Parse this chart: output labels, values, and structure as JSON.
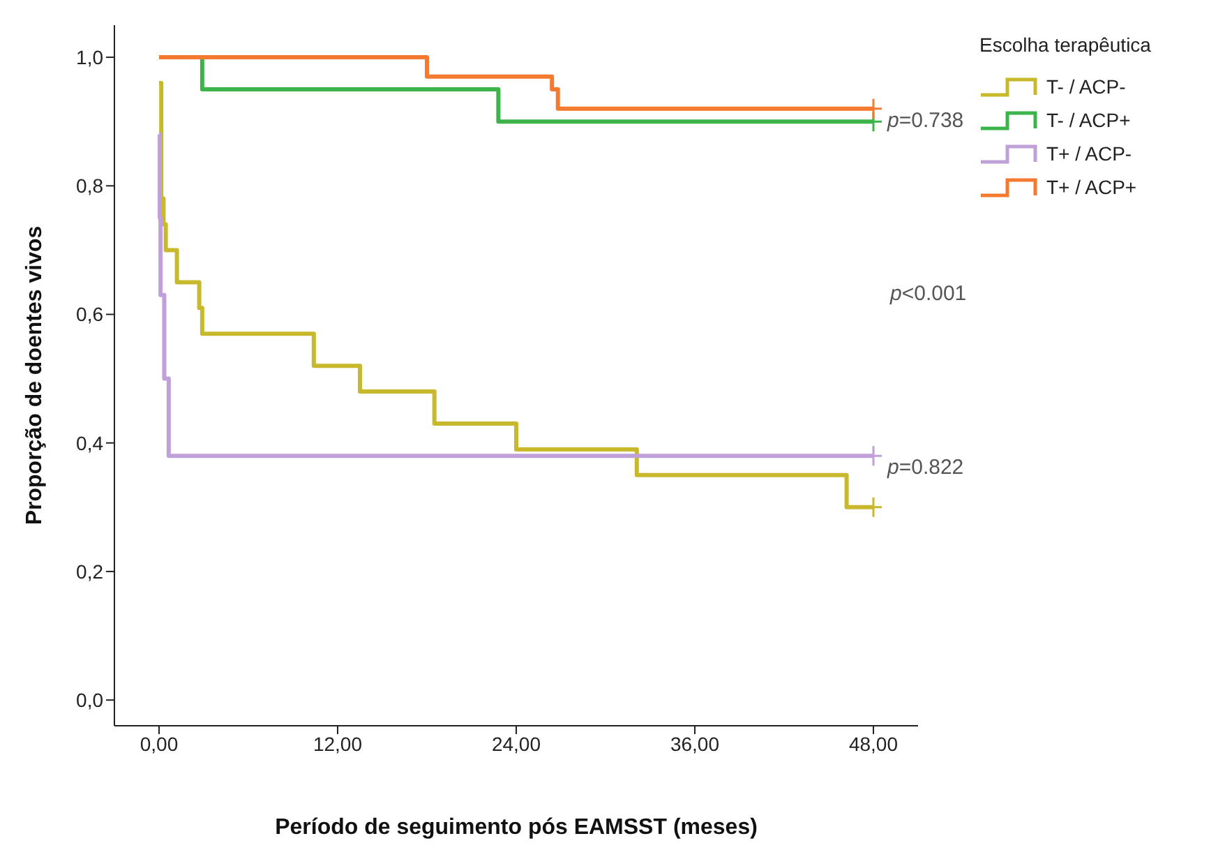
{
  "chart_data": {
    "type": "step",
    "xlabel": "Período de seguimento pós EAMSST (meses)",
    "ylabel": "Proporção de doentes vivos",
    "legend_title": "Escolha terapêutica",
    "legend": "top right",
    "grid": false,
    "xlim": [
      -3,
      51
    ],
    "xticks": [
      {
        "value": 0,
        "label": "0,00"
      },
      {
        "value": 12,
        "label": "12,00"
      },
      {
        "value": 24,
        "label": "24,00"
      },
      {
        "value": 36,
        "label": "36,00"
      },
      {
        "value": 48,
        "label": "48,00"
      }
    ],
    "ylim": [
      -0.04,
      1.05
    ],
    "yticks": [
      {
        "value": 0,
        "label": "0,0"
      },
      {
        "value": 0.2,
        "label": "0,2"
      },
      {
        "value": 0.4,
        "label": "0,4"
      },
      {
        "value": 0.6,
        "label": "0,6"
      },
      {
        "value": 0.8,
        "label": "0,8"
      },
      {
        "value": 1,
        "label": "1,0"
      }
    ],
    "series": [
      {
        "name": "T- / ACP-",
        "color": "#c8b92c",
        "x": [
          0,
          0.15,
          0.3,
          0.45,
          1.2,
          2.7,
          2.9,
          10.4,
          13.5,
          18.5,
          24,
          32.1,
          46.2,
          48
        ],
        "values": [
          0.96,
          0.78,
          0.74,
          0.7,
          0.65,
          0.61,
          0.57,
          0.52,
          0.48,
          0.43,
          0.39,
          0.35,
          0.3,
          0.3
        ]
      },
      {
        "name": "T- / ACP+",
        "color": "#3cb44a",
        "x": [
          0,
          2.9,
          22.8,
          48
        ],
        "values": [
          1,
          0.95,
          0.9,
          0.9
        ]
      },
      {
        "name": "T+ / ACP-",
        "color": "#c0a0d8",
        "x": [
          0,
          0.05,
          0.1,
          0.35,
          0.65,
          48
        ],
        "values": [
          0.88,
          0.75,
          0.63,
          0.5,
          0.38,
          0.38
        ]
      },
      {
        "name": "T+ / ACP+",
        "color": "#f47a30",
        "x": [
          0,
          18,
          26.4,
          26.8,
          48
        ],
        "values": [
          1,
          0.97,
          0.95,
          0.92,
          0.92
        ]
      }
    ],
    "annotations": [
      {
        "text": "p=0.738",
        "x": 48,
        "y": 0.92
      },
      "p<0.001",
      {
        "text": "p=0.822",
        "x": 48,
        "y": 0.38
      }
    ]
  }
}
